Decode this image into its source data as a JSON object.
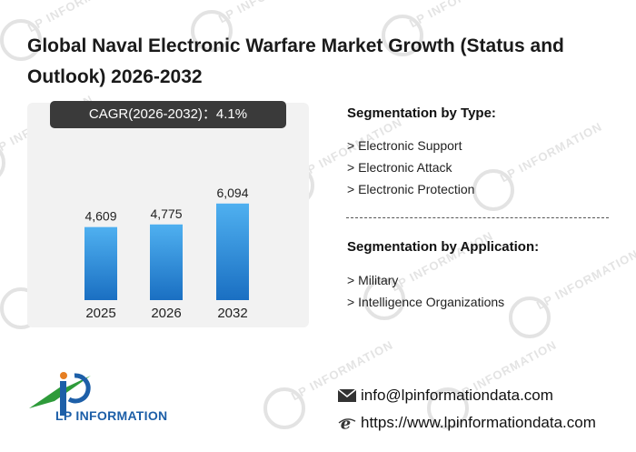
{
  "title": "Global Naval Electronic Warfare Market Growth (Status and Outlook) 2026-2032",
  "cagr_label": "CAGR(2026-2032)：4.1%",
  "chart_data": {
    "type": "bar",
    "categories": [
      "2025",
      "2026",
      "2032"
    ],
    "values": [
      4609,
      4775,
      6094
    ],
    "value_labels": [
      "4,609",
      "4,775",
      "6,094"
    ],
    "title": "",
    "xlabel": "",
    "ylabel": "",
    "ylim": [
      0,
      7000
    ],
    "grid": false,
    "colors": {
      "bar_top": "#4fb0f0",
      "bar_bottom": "#1a6fc2"
    }
  },
  "segmentation_type": {
    "heading": "Segmentation by Type:",
    "items": [
      "> Electronic Support",
      "> Electronic Attack",
      "> Electronic Protection"
    ]
  },
  "segmentation_application": {
    "heading": "Segmentation by Application:",
    "items": [
      "> Military",
      "> Intelligence Organizations"
    ]
  },
  "logo": {
    "text": "LP INFORMATION",
    "icon": "lp-logo-icon"
  },
  "watermark_text": "LP INFORMATION",
  "contact": {
    "email": "info@lpinformationdata.com",
    "email_icon": "mail-icon",
    "website": "https://www.lpinformationdata.com",
    "website_icon": "browser-e-icon"
  }
}
